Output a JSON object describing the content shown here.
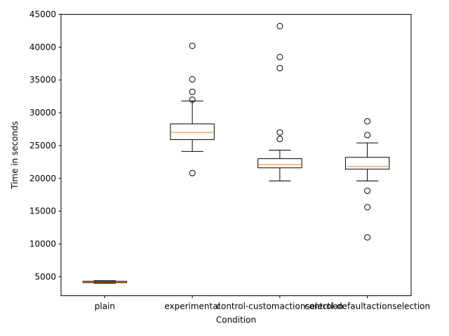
{
  "chart_data": {
    "type": "box",
    "xlabel": "Condition",
    "ylabel": "Time in seconds",
    "ylim": [
      2100,
      45000
    ],
    "yticks": [
      5000,
      10000,
      15000,
      20000,
      25000,
      30000,
      35000,
      40000,
      45000
    ],
    "grid": false,
    "categories": [
      "plain",
      "experimental",
      "control-customactionselection",
      "control-defaultactionselection"
    ],
    "boxes": [
      {
        "whisker_low": 4000,
        "q1": 4100,
        "median": 4200,
        "q3": 4300,
        "whisker_high": 4400,
        "outliers": []
      },
      {
        "whisker_low": 24100,
        "q1": 25900,
        "median": 27000,
        "q3": 28300,
        "whisker_high": 31800,
        "outliers": [
          20800,
          32000,
          33200,
          35100,
          40200
        ]
      },
      {
        "whisker_low": 19600,
        "q1": 21600,
        "median": 22100,
        "q3": 23000,
        "whisker_high": 24300,
        "outliers": [
          26000,
          27000,
          36800,
          38500,
          43200
        ]
      },
      {
        "whisker_low": 19600,
        "q1": 21400,
        "median": 21800,
        "q3": 23200,
        "whisker_high": 25400,
        "outliers": [
          11000,
          15600,
          18100,
          26600,
          28700
        ]
      }
    ],
    "colors": {
      "box": "#000000",
      "median": "#ff7f0e",
      "outlier": "#000000",
      "axis": "#000000"
    }
  }
}
